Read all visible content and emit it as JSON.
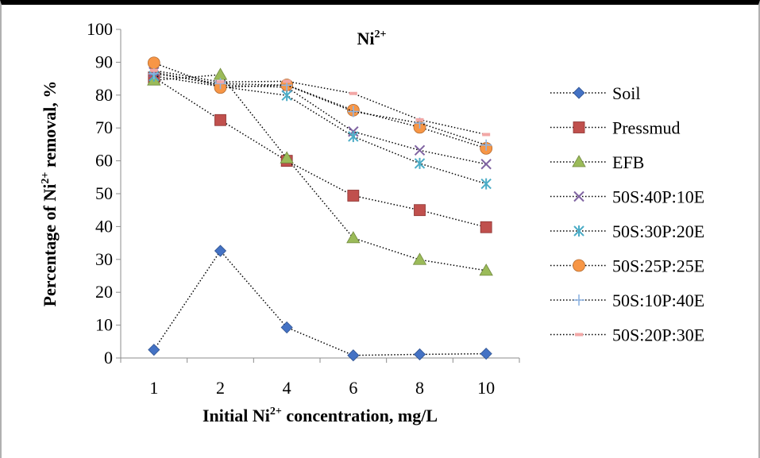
{
  "chart_data": {
    "type": "line",
    "title": "Ni",
    "title_sup": "2+",
    "xlabel": {
      "pre": "Initial Ni",
      "sup": "2+",
      "post": " concentration, mg/L"
    },
    "ylabel": {
      "pre": "Percentage of Ni",
      "sup": "2+",
      "post": " removal, %"
    },
    "categories": [
      "1",
      "2",
      "4",
      "6",
      "8",
      "10"
    ],
    "ylim": [
      0,
      100
    ],
    "yticks": [
      0,
      10,
      20,
      30,
      40,
      50,
      60,
      70,
      80,
      90,
      100
    ],
    "grid": false,
    "legend_position": "right",
    "line_style": "dotted",
    "series": [
      {
        "name": "Soil",
        "marker": "diamond",
        "color": "#4472C4",
        "values": [
          2.5,
          32.6,
          9.3,
          0.8,
          1.1,
          1.3
        ]
      },
      {
        "name": "Pressmud",
        "marker": "square",
        "color": "#C0504D",
        "values": [
          85.4,
          72.4,
          60.0,
          49.4,
          45.0,
          39.8
        ]
      },
      {
        "name": "EFB",
        "marker": "triangle",
        "color": "#9BBB59",
        "values": [
          84.5,
          86.2,
          60.8,
          36.5,
          29.9,
          26.6
        ]
      },
      {
        "name": "50S:40P:10E",
        "marker": "x",
        "color": "#8064A2",
        "values": [
          87.0,
          83.0,
          82.4,
          68.9,
          63.2,
          59.0
        ]
      },
      {
        "name": "50S:30P:20E",
        "marker": "star",
        "color": "#4BACC6",
        "values": [
          85.8,
          82.6,
          79.9,
          67.4,
          59.2,
          53.0
        ]
      },
      {
        "name": "50S:25P:25E",
        "marker": "circle",
        "color": "#F79646",
        "values": [
          89.8,
          82.3,
          83.1,
          75.4,
          70.2,
          63.8
        ]
      },
      {
        "name": "50S:10P:40E",
        "marker": "plus",
        "color": "#8EB4E3",
        "values": [
          86.5,
          83.5,
          83.0,
          75.0,
          71.5,
          64.8
        ]
      },
      {
        "name": "50S:20P:30E",
        "marker": "dash",
        "color": "#F2A7A6",
        "values": [
          87.5,
          84.0,
          84.2,
          80.5,
          72.5,
          68.0
        ]
      }
    ]
  }
}
